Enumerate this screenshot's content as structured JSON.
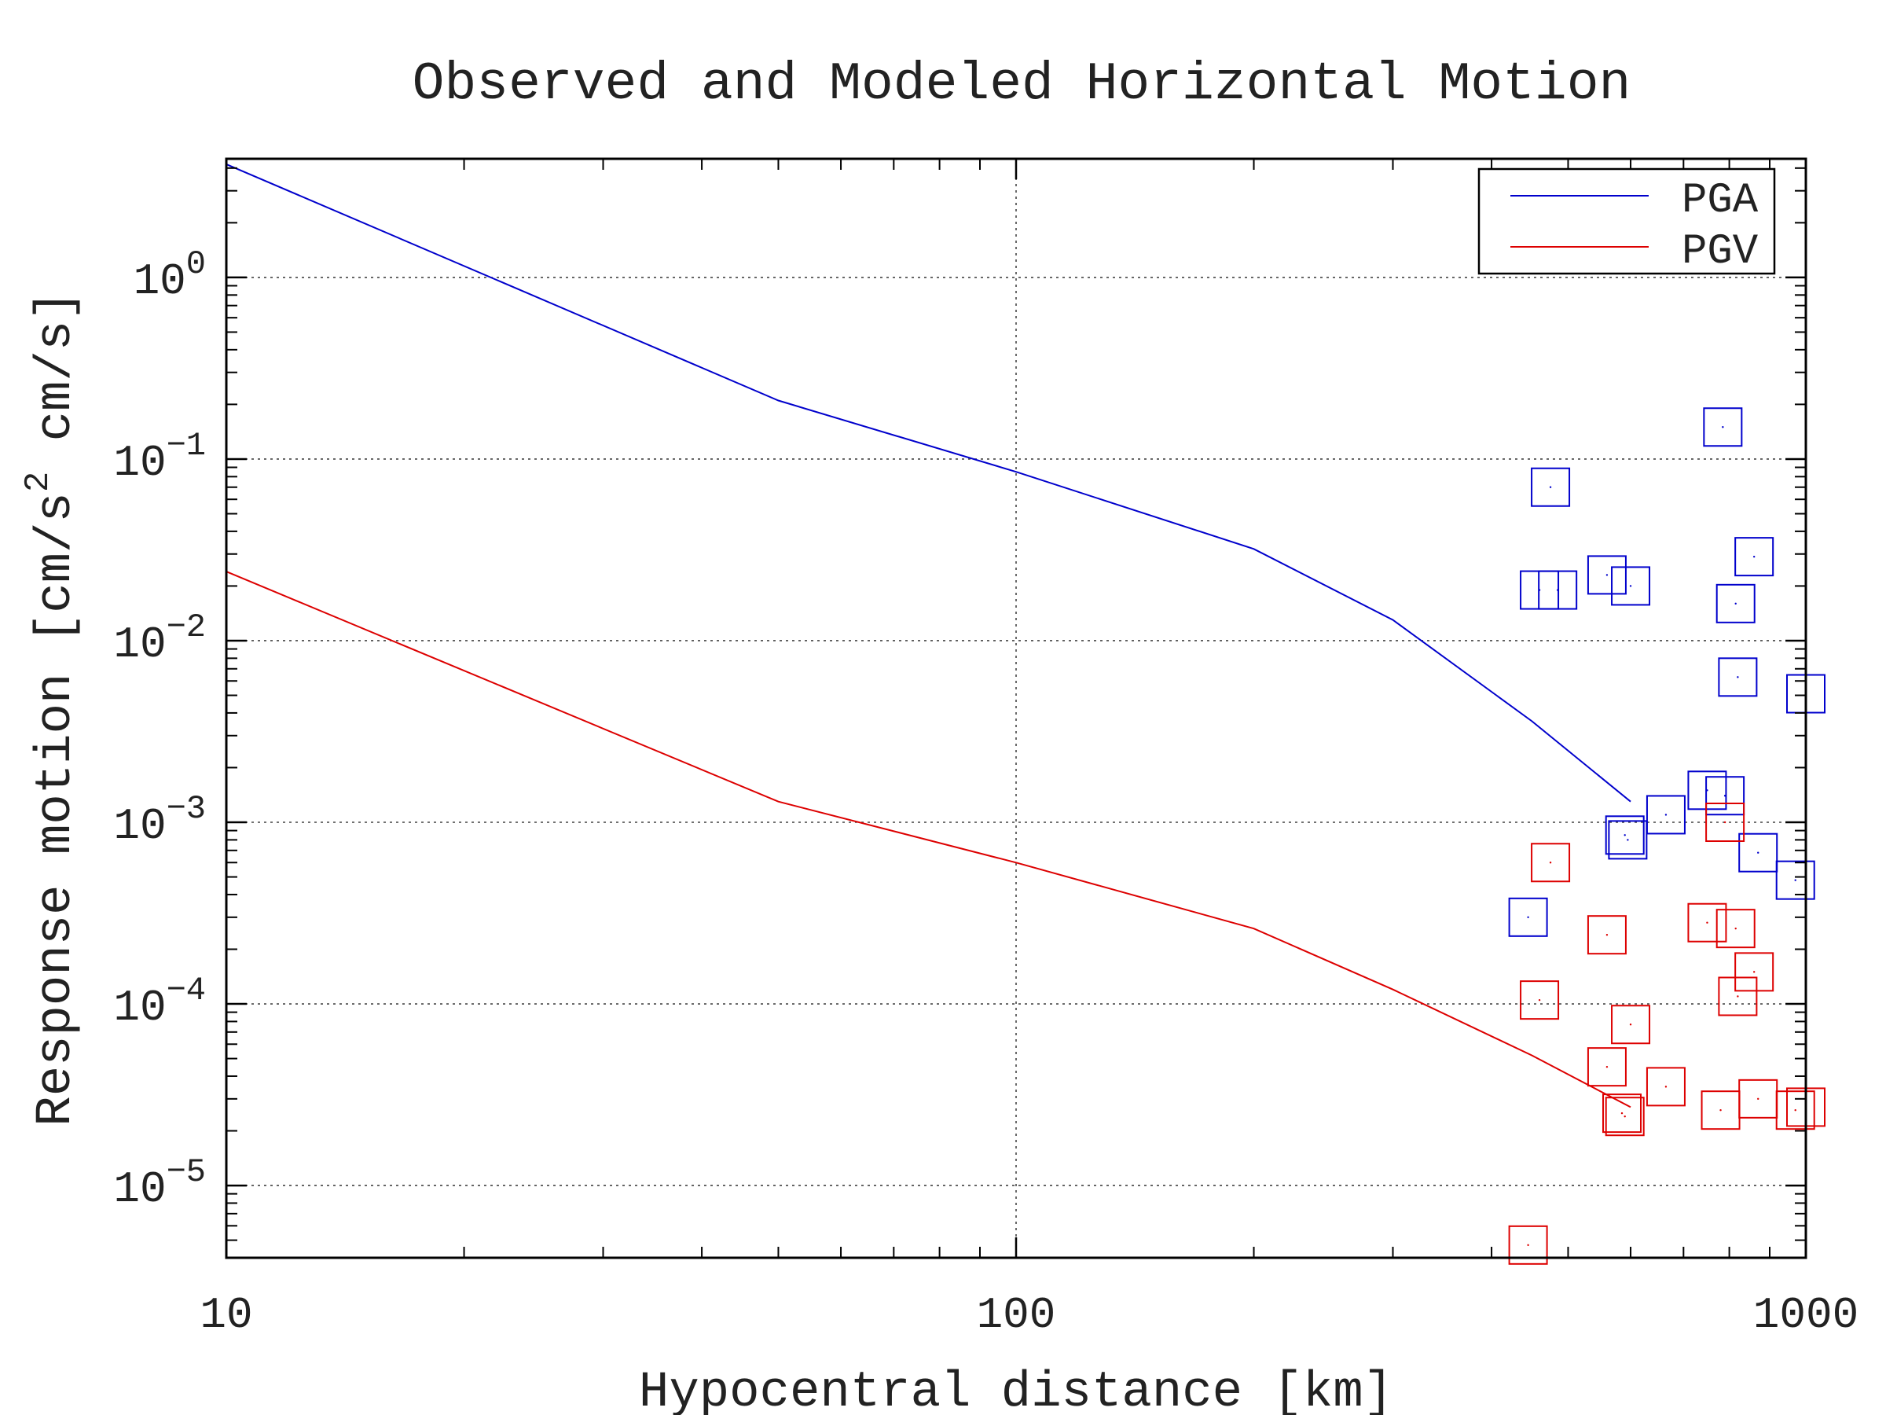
{
  "chart_data": {
    "type": "scatter",
    "title": "Observed and Modeled Horizontal Motion",
    "xlabel": "Hypocentral distance [km]",
    "ylabel": {
      "prefix": "Response motion  [cm/s",
      "sup": "2",
      "suffix": "  cm/s]"
    },
    "x_scale": "log",
    "y_scale": "log",
    "xlim": [
      10,
      1000
    ],
    "ylim": [
      4e-06,
      4.5
    ],
    "x_ticks": [
      {
        "value": 10,
        "label": "10"
      },
      {
        "value": 100,
        "label": "100"
      },
      {
        "value": 1000,
        "label": "1000"
      }
    ],
    "y_ticks": [
      {
        "value": 1,
        "base": "10",
        "exp": "0"
      },
      {
        "value": 0.1,
        "base": "10",
        "exp": "−1"
      },
      {
        "value": 0.01,
        "base": "10",
        "exp": "−2"
      },
      {
        "value": 0.001,
        "base": "10",
        "exp": "−3"
      },
      {
        "value": 0.0001,
        "base": "10",
        "exp": "−4"
      },
      {
        "value": 1e-05,
        "base": "10",
        "exp": "−5"
      }
    ],
    "grid": true,
    "legend": {
      "position": "top-right",
      "entries": [
        {
          "label": "PGA",
          "color": "#0000cc"
        },
        {
          "label": "PGV",
          "color": "#dd0000"
        }
      ]
    },
    "series": [
      {
        "name": "PGA",
        "kind": "line",
        "color": "#0000cc",
        "x": [
          10,
          50,
          100,
          200,
          300,
          450,
          600
        ],
        "y": [
          4.2,
          0.21,
          0.085,
          0.032,
          0.013,
          0.0036,
          0.0013
        ]
      },
      {
        "name": "PGV",
        "kind": "line",
        "color": "#dd0000",
        "x": [
          10,
          50,
          100,
          200,
          300,
          450,
          600
        ],
        "y": [
          0.024,
          0.0013,
          0.0006,
          0.00026,
          0.00012,
          5.2e-05,
          2.7e-05
        ]
      },
      {
        "name": "PGA",
        "kind": "markers",
        "color": "#0000cc",
        "x": [
          475,
          485,
          460,
          560,
          600,
          590,
          595,
          665,
          750,
          790,
          785,
          815,
          820,
          860,
          870,
          970,
          1000,
          445
        ],
        "y": [
          0.07,
          0.019,
          0.019,
          0.023,
          0.02,
          0.00085,
          0.0008,
          0.0011,
          0.0015,
          0.0014,
          0.15,
          0.016,
          0.0063,
          0.029,
          0.00068,
          0.00048,
          0.0051,
          0.0003
        ]
      },
      {
        "name": "PGV",
        "kind": "markers",
        "color": "#dd0000",
        "x": [
          475,
          460,
          560,
          560,
          600,
          590,
          585,
          665,
          750,
          790,
          815,
          820,
          860,
          870,
          780,
          970,
          1000,
          445
        ],
        "y": [
          0.0006,
          0.000105,
          4.5e-05,
          0.00024,
          7.7e-05,
          2.4e-05,
          2.5e-05,
          3.5e-05,
          0.00028,
          0.001,
          0.00026,
          0.00011,
          0.00015,
          3e-05,
          2.6e-05,
          2.6e-05,
          2.7e-05,
          4.7e-06
        ]
      }
    ]
  }
}
